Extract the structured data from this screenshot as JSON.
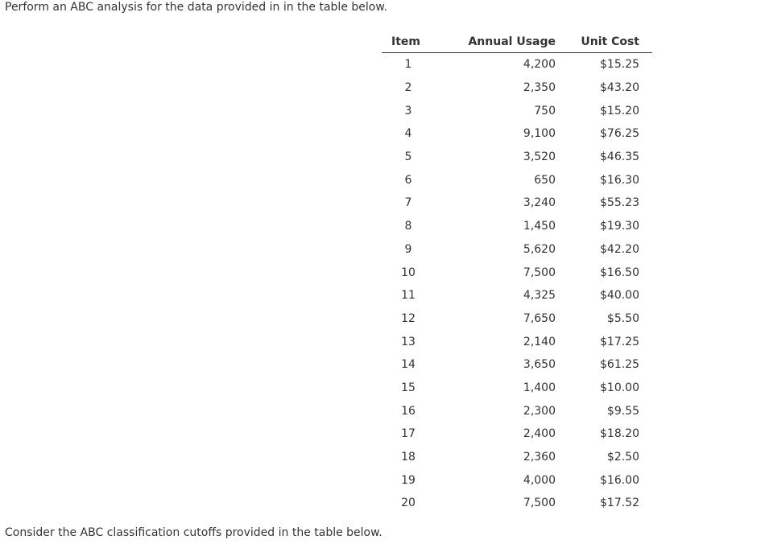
{
  "intro_text": "Perform an ABC analysis for the data provided in in the table below.",
  "table": {
    "headers": {
      "item": "Item",
      "annual_usage": "Annual Usage",
      "unit_cost": "Unit Cost"
    },
    "rows": [
      {
        "item": "1",
        "annual_usage": "4,200",
        "unit_cost": "$15.25"
      },
      {
        "item": "2",
        "annual_usage": "2,350",
        "unit_cost": "$43.20"
      },
      {
        "item": "3",
        "annual_usage": "750",
        "unit_cost": "$15.20"
      },
      {
        "item": "4",
        "annual_usage": "9,100",
        "unit_cost": "$76.25"
      },
      {
        "item": "5",
        "annual_usage": "3,520",
        "unit_cost": "$46.35"
      },
      {
        "item": "6",
        "annual_usage": "650",
        "unit_cost": "$16.30"
      },
      {
        "item": "7",
        "annual_usage": "3,240",
        "unit_cost": "$55.23"
      },
      {
        "item": "8",
        "annual_usage": "1,450",
        "unit_cost": "$19.30"
      },
      {
        "item": "9",
        "annual_usage": "5,620",
        "unit_cost": "$42.20"
      },
      {
        "item": "10",
        "annual_usage": "7,500",
        "unit_cost": "$16.50"
      },
      {
        "item": "11",
        "annual_usage": "4,325",
        "unit_cost": "$40.00"
      },
      {
        "item": "12",
        "annual_usage": "7,650",
        "unit_cost": "$5.50"
      },
      {
        "item": "13",
        "annual_usage": "2,140",
        "unit_cost": "$17.25"
      },
      {
        "item": "14",
        "annual_usage": "3,650",
        "unit_cost": "$61.25"
      },
      {
        "item": "15",
        "annual_usage": "1,400",
        "unit_cost": "$10.00"
      },
      {
        "item": "16",
        "annual_usage": "2,300",
        "unit_cost": "$9.55"
      },
      {
        "item": "17",
        "annual_usage": "2,400",
        "unit_cost": "$18.20"
      },
      {
        "item": "18",
        "annual_usage": "2,360",
        "unit_cost": "$2.50"
      },
      {
        "item": "19",
        "annual_usage": "4,000",
        "unit_cost": "$16.00"
      },
      {
        "item": "20",
        "annual_usage": "7,500",
        "unit_cost": "$17.52"
      }
    ]
  },
  "outro_text": "Consider the ABC classification cutoffs provided in the table below."
}
